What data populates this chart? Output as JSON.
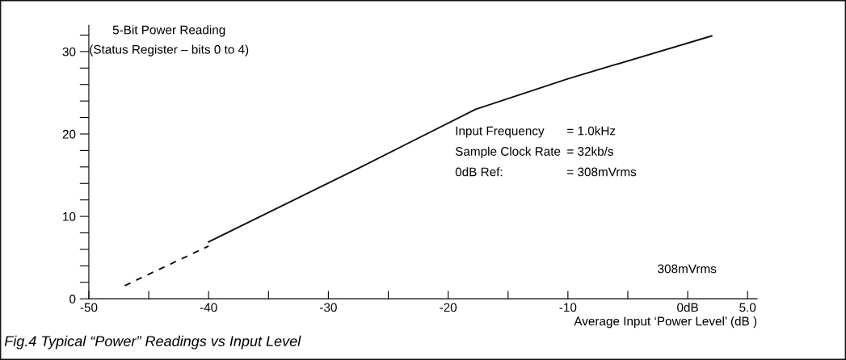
{
  "chart_data": {
    "type": "line",
    "title": "Fig.4 Typical “Power” Readings vs Input Level",
    "ylabel": "5-Bit Power Reading\n(Status Register – bits 0 to 4)",
    "xlabel": "Average Input ‘Power Level’ (dB )",
    "series": [
      {
        "color": "#111111",
        "line_style": "dashed",
        "x": [
          -47.0,
          -40.0
        ],
        "values": [
          1.6,
          6.4
        ]
      },
      {
        "color": "#111111",
        "line_style": "solid",
        "x": [
          -40.0,
          -27.0,
          -17.7,
          -10.0,
          2.0
        ],
        "values": [
          6.9,
          16.2,
          23.0,
          26.7,
          31.9
        ]
      }
    ],
    "xlim": [
      -50,
      5.8
    ],
    "ylim": [
      0,
      33.2
    ],
    "xticks": [
      -50,
      {
        "value": -45,
        "label": null
      },
      -40,
      {
        "value": -35,
        "label": null
      },
      -30,
      {
        "value": -25,
        "label": null
      },
      -20,
      {
        "value": -15,
        "label": null
      },
      -10,
      {
        "value": -5,
        "label": null
      },
      {
        "value": 0,
        "label": "0dB"
      },
      {
        "value": 5,
        "label": "5.0"
      }
    ],
    "yticks": [
      0,
      {
        "value": 2,
        "label": null
      },
      {
        "value": 4,
        "label": null
      },
      {
        "value": 6,
        "label": null
      },
      {
        "value": 8,
        "label": null
      },
      10,
      {
        "value": 12,
        "label": null
      },
      {
        "value": 14,
        "label": null
      },
      {
        "value": 16,
        "label": null
      },
      {
        "value": 18,
        "label": null
      },
      20,
      {
        "value": 22,
        "label": null
      },
      {
        "value": 24,
        "label": null
      },
      {
        "value": 26,
        "label": null
      },
      {
        "value": 28,
        "label": null
      },
      30,
      {
        "value": 32,
        "label": null
      }
    ],
    "annotations": [
      "308mVrms",
      "Input Frequency = 1.0kHz",
      "Sample Clock Rate = 32kb/s",
      "0dB Ref: = 308mVrms"
    ],
    "grid": false,
    "legend": false,
    "marker": "none"
  }
}
